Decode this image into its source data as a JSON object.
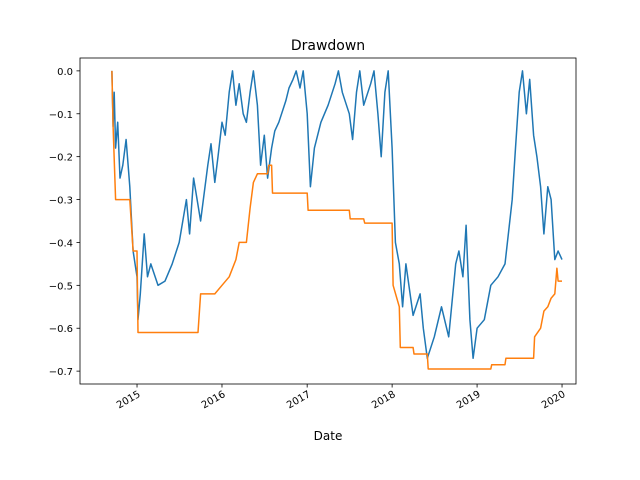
{
  "chart_data": {
    "type": "line",
    "title": "Drawdown",
    "xlabel": "Date",
    "ylabel": "",
    "x_ticks": [
      "2015",
      "2016",
      "2017",
      "2018",
      "2019",
      "2020"
    ],
    "y_ticks": [
      "0.0",
      "−0.1",
      "−0.2",
      "−0.3",
      "−0.4",
      "−0.5",
      "−0.6",
      "−0.7"
    ],
    "y_tick_values": [
      0.0,
      -0.1,
      -0.2,
      -0.3,
      -0.4,
      -0.5,
      -0.6,
      -0.7
    ],
    "xlim": [
      "2014-05-01",
      "2020-03-01"
    ],
    "ylim": [
      -0.73,
      0.03
    ],
    "grid": false,
    "series": [
      {
        "color": "#1f77b4",
        "points": [
          [
            "2014-09-15",
            0.0
          ],
          [
            "2014-09-20",
            -0.13
          ],
          [
            "2014-09-25",
            -0.05
          ],
          [
            "2014-10-01",
            -0.18
          ],
          [
            "2014-10-10",
            -0.12
          ],
          [
            "2014-10-20",
            -0.25
          ],
          [
            "2014-11-01",
            -0.22
          ],
          [
            "2014-11-15",
            -0.16
          ],
          [
            "2014-12-01",
            -0.27
          ],
          [
            "2014-12-15",
            -0.42
          ],
          [
            "2015-01-01",
            -0.48
          ],
          [
            "2015-01-05",
            -0.58
          ],
          [
            "2015-01-15",
            -0.52
          ],
          [
            "2015-02-01",
            -0.38
          ],
          [
            "2015-02-15",
            -0.48
          ],
          [
            "2015-03-01",
            -0.45
          ],
          [
            "2015-04-01",
            -0.5
          ],
          [
            "2015-05-01",
            -0.49
          ],
          [
            "2015-06-01",
            -0.45
          ],
          [
            "2015-07-01",
            -0.4
          ],
          [
            "2015-08-01",
            -0.3
          ],
          [
            "2015-08-15",
            -0.38
          ],
          [
            "2015-09-01",
            -0.25
          ],
          [
            "2015-10-01",
            -0.35
          ],
          [
            "2015-11-01",
            -0.22
          ],
          [
            "2015-11-15",
            -0.17
          ],
          [
            "2015-12-01",
            -0.26
          ],
          [
            "2015-12-15",
            -0.2
          ],
          [
            "2016-01-01",
            -0.12
          ],
          [
            "2016-01-15",
            -0.15
          ],
          [
            "2016-02-01",
            -0.05
          ],
          [
            "2016-02-15",
            0.0
          ],
          [
            "2016-03-01",
            -0.08
          ],
          [
            "2016-03-15",
            -0.03
          ],
          [
            "2016-04-01",
            -0.1
          ],
          [
            "2016-04-15",
            -0.12
          ],
          [
            "2016-05-01",
            -0.05
          ],
          [
            "2016-05-15",
            0.0
          ],
          [
            "2016-06-01",
            -0.08
          ],
          [
            "2016-06-15",
            -0.22
          ],
          [
            "2016-07-01",
            -0.15
          ],
          [
            "2016-07-15",
            -0.25
          ],
          [
            "2016-08-01",
            -0.18
          ],
          [
            "2016-08-15",
            -0.14
          ],
          [
            "2016-09-01",
            -0.12
          ],
          [
            "2016-10-01",
            -0.07
          ],
          [
            "2016-10-15",
            -0.04
          ],
          [
            "2016-11-01",
            -0.02
          ],
          [
            "2016-11-15",
            0.0
          ],
          [
            "2016-12-01",
            -0.04
          ],
          [
            "2016-12-15",
            0.0
          ],
          [
            "2017-01-01",
            -0.1
          ],
          [
            "2017-01-15",
            -0.27
          ],
          [
            "2017-02-01",
            -0.18
          ],
          [
            "2017-03-01",
            -0.12
          ],
          [
            "2017-04-01",
            -0.08
          ],
          [
            "2017-05-01",
            -0.03
          ],
          [
            "2017-05-15",
            0.0
          ],
          [
            "2017-06-01",
            -0.05
          ],
          [
            "2017-07-01",
            -0.1
          ],
          [
            "2017-07-15",
            -0.16
          ],
          [
            "2017-08-01",
            -0.05
          ],
          [
            "2017-08-15",
            0.0
          ],
          [
            "2017-09-01",
            -0.08
          ],
          [
            "2017-10-01",
            -0.03
          ],
          [
            "2017-10-15",
            0.0
          ],
          [
            "2017-11-01",
            -0.1
          ],
          [
            "2017-11-15",
            -0.2
          ],
          [
            "2017-12-01",
            -0.05
          ],
          [
            "2017-12-15",
            0.0
          ],
          [
            "2018-01-01",
            -0.18
          ],
          [
            "2018-01-15",
            -0.4
          ],
          [
            "2018-02-01",
            -0.45
          ],
          [
            "2018-02-15",
            -0.55
          ],
          [
            "2018-03-01",
            -0.45
          ],
          [
            "2018-04-01",
            -0.57
          ],
          [
            "2018-05-01",
            -0.52
          ],
          [
            "2018-05-15",
            -0.6
          ],
          [
            "2018-06-01",
            -0.67
          ],
          [
            "2018-07-01",
            -0.62
          ],
          [
            "2018-08-01",
            -0.55
          ],
          [
            "2018-09-01",
            -0.62
          ],
          [
            "2018-10-01",
            -0.45
          ],
          [
            "2018-10-15",
            -0.42
          ],
          [
            "2018-11-01",
            -0.48
          ],
          [
            "2018-11-15",
            -0.36
          ],
          [
            "2018-12-01",
            -0.58
          ],
          [
            "2018-12-15",
            -0.67
          ],
          [
            "2019-01-01",
            -0.6
          ],
          [
            "2019-02-01",
            -0.58
          ],
          [
            "2019-03-01",
            -0.5
          ],
          [
            "2019-04-01",
            -0.48
          ],
          [
            "2019-05-01",
            -0.45
          ],
          [
            "2019-06-01",
            -0.3
          ],
          [
            "2019-06-15",
            -0.18
          ],
          [
            "2019-07-01",
            -0.05
          ],
          [
            "2019-07-15",
            0.0
          ],
          [
            "2019-08-01",
            -0.1
          ],
          [
            "2019-08-15",
            -0.02
          ],
          [
            "2019-09-01",
            -0.15
          ],
          [
            "2019-09-15",
            -0.2
          ],
          [
            "2019-10-01",
            -0.27
          ],
          [
            "2019-10-15",
            -0.38
          ],
          [
            "2019-11-01",
            -0.27
          ],
          [
            "2019-11-15",
            -0.3
          ],
          [
            "2019-12-01",
            -0.44
          ],
          [
            "2019-12-15",
            -0.42
          ],
          [
            "2020-01-01",
            -0.44
          ]
        ]
      },
      {
        "color": "#ff7f0e",
        "points": [
          [
            "2014-09-15",
            0.0
          ],
          [
            "2014-09-20",
            -0.13
          ],
          [
            "2014-10-01",
            -0.3
          ],
          [
            "2014-12-01",
            -0.3
          ],
          [
            "2014-12-15",
            -0.42
          ],
          [
            "2015-01-01",
            -0.42
          ],
          [
            "2015-01-05",
            -0.61
          ],
          [
            "2015-09-20",
            -0.61
          ],
          [
            "2015-10-01",
            -0.52
          ],
          [
            "2015-12-01",
            -0.52
          ],
          [
            "2016-01-01",
            -0.5
          ],
          [
            "2016-02-01",
            -0.48
          ],
          [
            "2016-03-01",
            -0.44
          ],
          [
            "2016-03-15",
            -0.4
          ],
          [
            "2016-04-15",
            -0.4
          ],
          [
            "2016-05-01",
            -0.32
          ],
          [
            "2016-05-15",
            -0.26
          ],
          [
            "2016-06-01",
            -0.24
          ],
          [
            "2016-07-15",
            -0.24
          ],
          [
            "2016-07-20",
            -0.22
          ],
          [
            "2016-08-01",
            -0.22
          ],
          [
            "2016-08-05",
            -0.285
          ],
          [
            "2017-01-01",
            -0.285
          ],
          [
            "2017-01-05",
            -0.325
          ],
          [
            "2017-07-01",
            -0.325
          ],
          [
            "2017-07-05",
            -0.345
          ],
          [
            "2017-09-01",
            -0.345
          ],
          [
            "2017-09-05",
            -0.355
          ],
          [
            "2018-01-01",
            -0.355
          ],
          [
            "2018-01-05",
            -0.5
          ],
          [
            "2018-02-01",
            -0.55
          ],
          [
            "2018-02-05",
            -0.645
          ],
          [
            "2018-04-01",
            -0.645
          ],
          [
            "2018-04-05",
            -0.66
          ],
          [
            "2018-06-01",
            -0.66
          ],
          [
            "2018-06-05",
            -0.695
          ],
          [
            "2019-03-01",
            -0.695
          ],
          [
            "2019-03-05",
            -0.685
          ],
          [
            "2019-05-01",
            -0.685
          ],
          [
            "2019-05-05",
            -0.67
          ],
          [
            "2019-09-01",
            -0.67
          ],
          [
            "2019-09-05",
            -0.62
          ],
          [
            "2019-10-01",
            -0.6
          ],
          [
            "2019-10-15",
            -0.56
          ],
          [
            "2019-11-01",
            -0.55
          ],
          [
            "2019-11-15",
            -0.53
          ],
          [
            "2019-12-01",
            -0.52
          ],
          [
            "2019-12-10",
            -0.46
          ],
          [
            "2019-12-15",
            -0.49
          ],
          [
            "2020-01-01",
            -0.49
          ]
        ]
      }
    ]
  }
}
